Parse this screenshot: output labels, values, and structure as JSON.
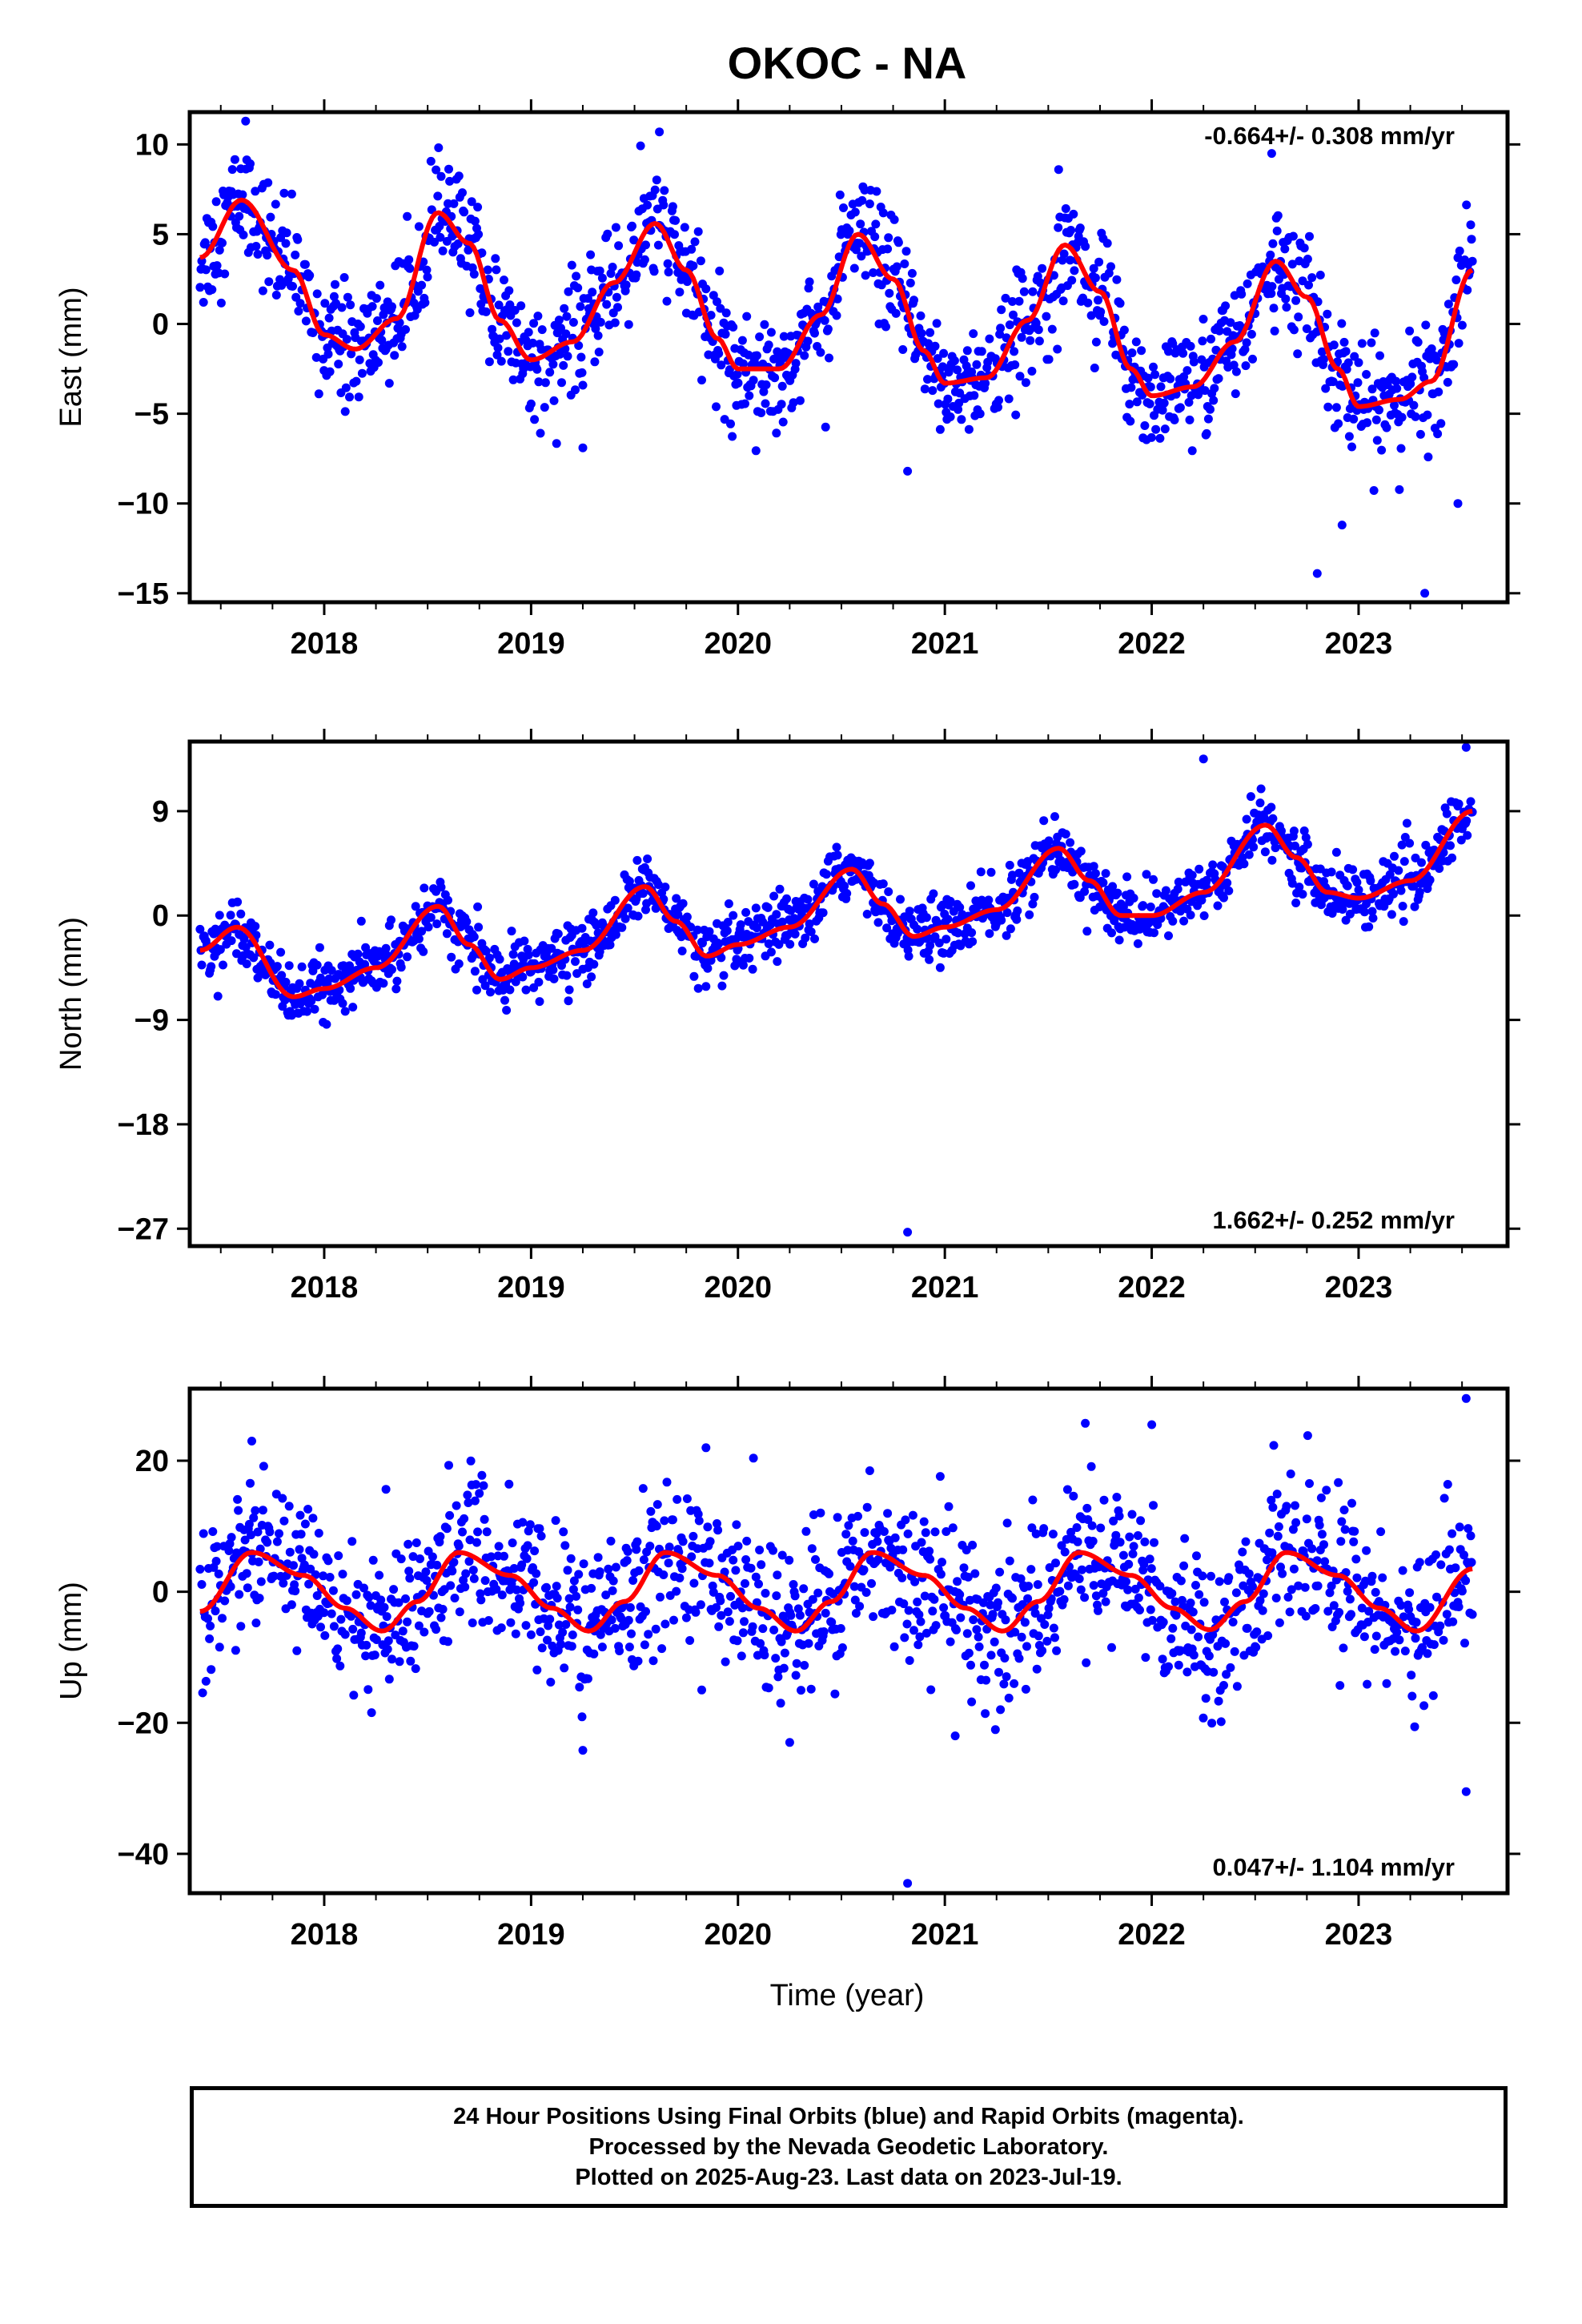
{
  "figure": {
    "title": "OKOC - NA",
    "footer_lines": [
      "24 Hour Positions Using Final Orbits (blue) and Rapid Orbits (magenta).",
      "Processed by the Nevada Geodetic Laboratory.",
      "Plotted on 2025-Aug-23. Last data on 2023-Jul-19."
    ],
    "colors": {
      "points": "#0000ff",
      "model": "#ff0000",
      "frame": "#000000"
    }
  },
  "chart_data": [
    {
      "type": "scatter",
      "title": "OKOC - NA",
      "xlabel": "",
      "ylabel": "East (mm)",
      "xlim": [
        2017.35,
        2023.72
      ],
      "ylim": [
        -15.5,
        11.8
      ],
      "x_ticks": [
        2018,
        2019,
        2020,
        2021,
        2022,
        2023
      ],
      "y_ticks": [
        -15,
        -10,
        -5,
        0,
        5,
        10
      ],
      "y_tick_labels": [
        "−15",
        "−10",
        "−5",
        "0",
        "5",
        "10"
      ],
      "rate_text": "-0.664+/- 0.308 mm/yr",
      "rate_position": "top-right",
      "grid": false,
      "data_range": [
        2017.4,
        2023.55
      ],
      "series": [
        {
          "kind": "model-line",
          "x": [
            2017.4,
            2017.6,
            2017.85,
            2018.0,
            2018.15,
            2018.35,
            2018.55,
            2018.7,
            2018.85,
            2019.0,
            2019.2,
            2019.4,
            2019.6,
            2019.75,
            2019.9,
            2020.0,
            2020.2,
            2020.4,
            2020.58,
            2020.75,
            2020.9,
            2021.0,
            2021.2,
            2021.4,
            2021.58,
            2021.75,
            2021.9,
            2022.0,
            2022.2,
            2022.4,
            2022.6,
            2022.75,
            2022.9,
            2023.0,
            2023.2,
            2023.35,
            2023.55
          ],
          "y": [
            3.7,
            6.9,
            3.0,
            -0.6,
            -1.4,
            0.3,
            6.2,
            4.5,
            0.2,
            -2.0,
            -1.0,
            2.3,
            5.6,
            3.0,
            -0.8,
            -2.5,
            -2.5,
            0.5,
            5.0,
            2.5,
            -1.5,
            -3.3,
            -3.0,
            0.2,
            4.4,
            1.8,
            -2.5,
            -4.0,
            -3.5,
            -1.0,
            3.5,
            1.5,
            -2.5,
            -4.6,
            -4.2,
            -3.2,
            3.0
          ]
        },
        {
          "kind": "outliers",
          "x": [
            2017.62,
            2019.62,
            2021.55,
            2022.58,
            2022.8,
            2022.92,
            2023.32,
            2023.48,
            2020.82,
            2019.25
          ],
          "y": [
            11.3,
            10.7,
            8.6,
            9.5,
            -13.9,
            -11.2,
            -15.0,
            -10.0,
            -8.2,
            -6.9
          ]
        }
      ],
      "scatter_spread": 1.6
    },
    {
      "type": "scatter",
      "xlabel": "",
      "ylabel": "North (mm)",
      "xlim": [
        2017.35,
        2023.72
      ],
      "ylim": [
        -28.5,
        15.0
      ],
      "x_ticks": [
        2018,
        2019,
        2020,
        2021,
        2022,
        2023
      ],
      "y_ticks": [
        -27,
        -18,
        -9,
        0,
        9
      ],
      "y_tick_labels": [
        "−27",
        "−18",
        "−9",
        "0",
        "9"
      ],
      "rate_text": "1.662+/- 0.252 mm/yr",
      "rate_position": "bottom-right",
      "grid": false,
      "data_range": [
        2017.4,
        2023.55
      ],
      "series": [
        {
          "kind": "model-line",
          "x": [
            2017.4,
            2017.58,
            2017.85,
            2018.0,
            2018.25,
            2018.55,
            2018.7,
            2018.85,
            2019.0,
            2019.25,
            2019.55,
            2019.7,
            2019.85,
            2020.0,
            2020.25,
            2020.55,
            2020.7,
            2020.85,
            2021.0,
            2021.25,
            2021.55,
            2021.7,
            2021.85,
            2022.0,
            2022.25,
            2022.55,
            2022.7,
            2022.85,
            2023.0,
            2023.25,
            2023.55
          ],
          "y": [
            -3.0,
            -1.0,
            -7.0,
            -6.3,
            -4.5,
            0.8,
            -2.5,
            -5.5,
            -4.5,
            -3.0,
            2.5,
            -0.5,
            -3.5,
            -2.5,
            -1.0,
            4.0,
            1.0,
            -1.8,
            -1.0,
            0.5,
            5.8,
            3.0,
            0.0,
            0.0,
            2.0,
            7.8,
            5.0,
            2.0,
            1.5,
            3.0,
            9.0
          ]
        },
        {
          "kind": "outliers",
          "x": [
            2020.82,
            2023.52,
            2022.25
          ],
          "y": [
            -27.3,
            14.5,
            13.5
          ]
        }
      ],
      "scatter_spread": 1.3
    },
    {
      "type": "scatter",
      "xlabel": "Time (year)",
      "ylabel": "Up (mm)",
      "xlim": [
        2017.35,
        2023.72
      ],
      "ylim": [
        -46.0,
        31.0
      ],
      "x_ticks": [
        2018,
        2019,
        2020,
        2021,
        2022,
        2023
      ],
      "y_ticks": [
        -40,
        -20,
        0,
        20
      ],
      "y_tick_labels": [
        "−40",
        "−20",
        "0",
        "20"
      ],
      "rate_text": "0.047+/- 1.104 mm/yr",
      "rate_position": "bottom-right",
      "grid": false,
      "data_range": [
        2017.4,
        2023.55
      ],
      "series": [
        {
          "kind": "model-line",
          "x": [
            2017.4,
            2017.65,
            2017.9,
            2018.1,
            2018.28,
            2018.45,
            2018.65,
            2018.9,
            2019.1,
            2019.28,
            2019.45,
            2019.65,
            2019.9,
            2020.1,
            2020.28,
            2020.45,
            2020.65,
            2020.9,
            2021.1,
            2021.28,
            2021.45,
            2021.65,
            2021.9,
            2022.1,
            2022.28,
            2022.45,
            2022.65,
            2022.9,
            2023.1,
            2023.28,
            2023.55
          ],
          "y": [
            -3.0,
            6.0,
            2.5,
            -2.5,
            -6.0,
            -1.5,
            6.0,
            2.5,
            -2.5,
            -6.0,
            -1.5,
            6.0,
            2.5,
            -2.5,
            -6.0,
            -1.5,
            6.0,
            2.5,
            -2.5,
            -6.0,
            -1.5,
            6.0,
            2.5,
            -2.5,
            -5.8,
            -1.5,
            6.0,
            2.5,
            -2.5,
            -6.0,
            3.5
          ]
        },
        {
          "kind": "outliers",
          "x": [
            2023.52,
            2022.0,
            2020.82,
            2023.52,
            2020.25,
            2021.05,
            2017.65
          ],
          "y": [
            29.5,
            25.5,
            -44.5,
            -30.5,
            -23.0,
            -22.0,
            23.0
          ]
        }
      ],
      "scatter_spread": 6.0
    }
  ]
}
